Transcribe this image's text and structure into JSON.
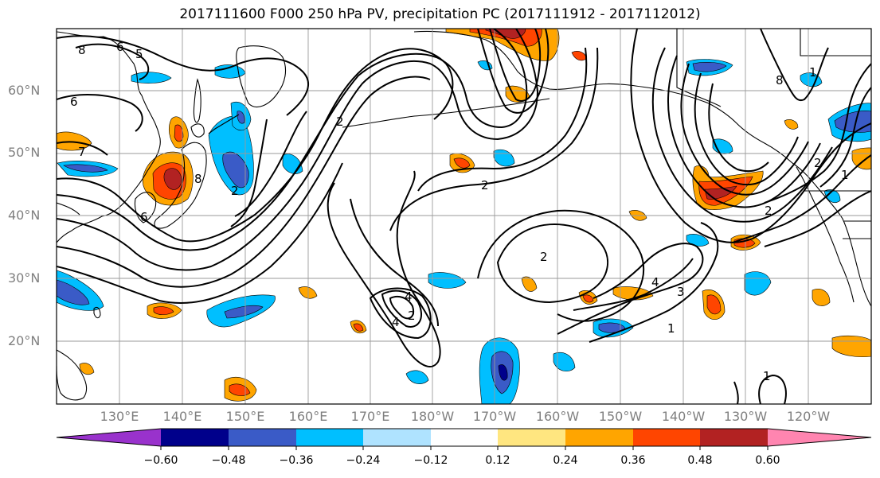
{
  "title": "2017111600 F000 250 hPa PV, precipitation PC (2017111912 - 2017112012)",
  "axes": {
    "lat_labels": [
      "60°N",
      "50°N",
      "40°N",
      "30°N",
      "20°N"
    ],
    "lon_labels": [
      "130°E",
      "140°E",
      "150°E",
      "160°E",
      "170°E",
      "180°W",
      "170°W",
      "160°W",
      "150°W",
      "140°W",
      "130°W",
      "120°W"
    ]
  },
  "contour_labels": [
    "8",
    "6",
    "5",
    "6",
    "7",
    "8",
    "6",
    "2",
    "2",
    "2",
    "2",
    "4",
    "4",
    "2",
    "4",
    "3",
    "1",
    "1",
    "2",
    "8",
    "1",
    "2",
    "1"
  ],
  "colorbar": {
    "ticks": [
      "−0.60",
      "−0.48",
      "−0.36",
      "−0.24",
      "−0.12",
      "0.12",
      "0.24",
      "0.36",
      "0.48",
      "0.60"
    ],
    "colors": [
      "#9932cc",
      "#00008b",
      "#3a5bc7",
      "#00bfff",
      "#afe3ff",
      "#ffffff",
      "#ffe680",
      "#ffa500",
      "#ff4500",
      "#b22222",
      "#ff85b0"
    ]
  },
  "colors": {
    "land_outline": "#000000",
    "grid": "#9a9a9a",
    "contour": "#000000"
  }
}
